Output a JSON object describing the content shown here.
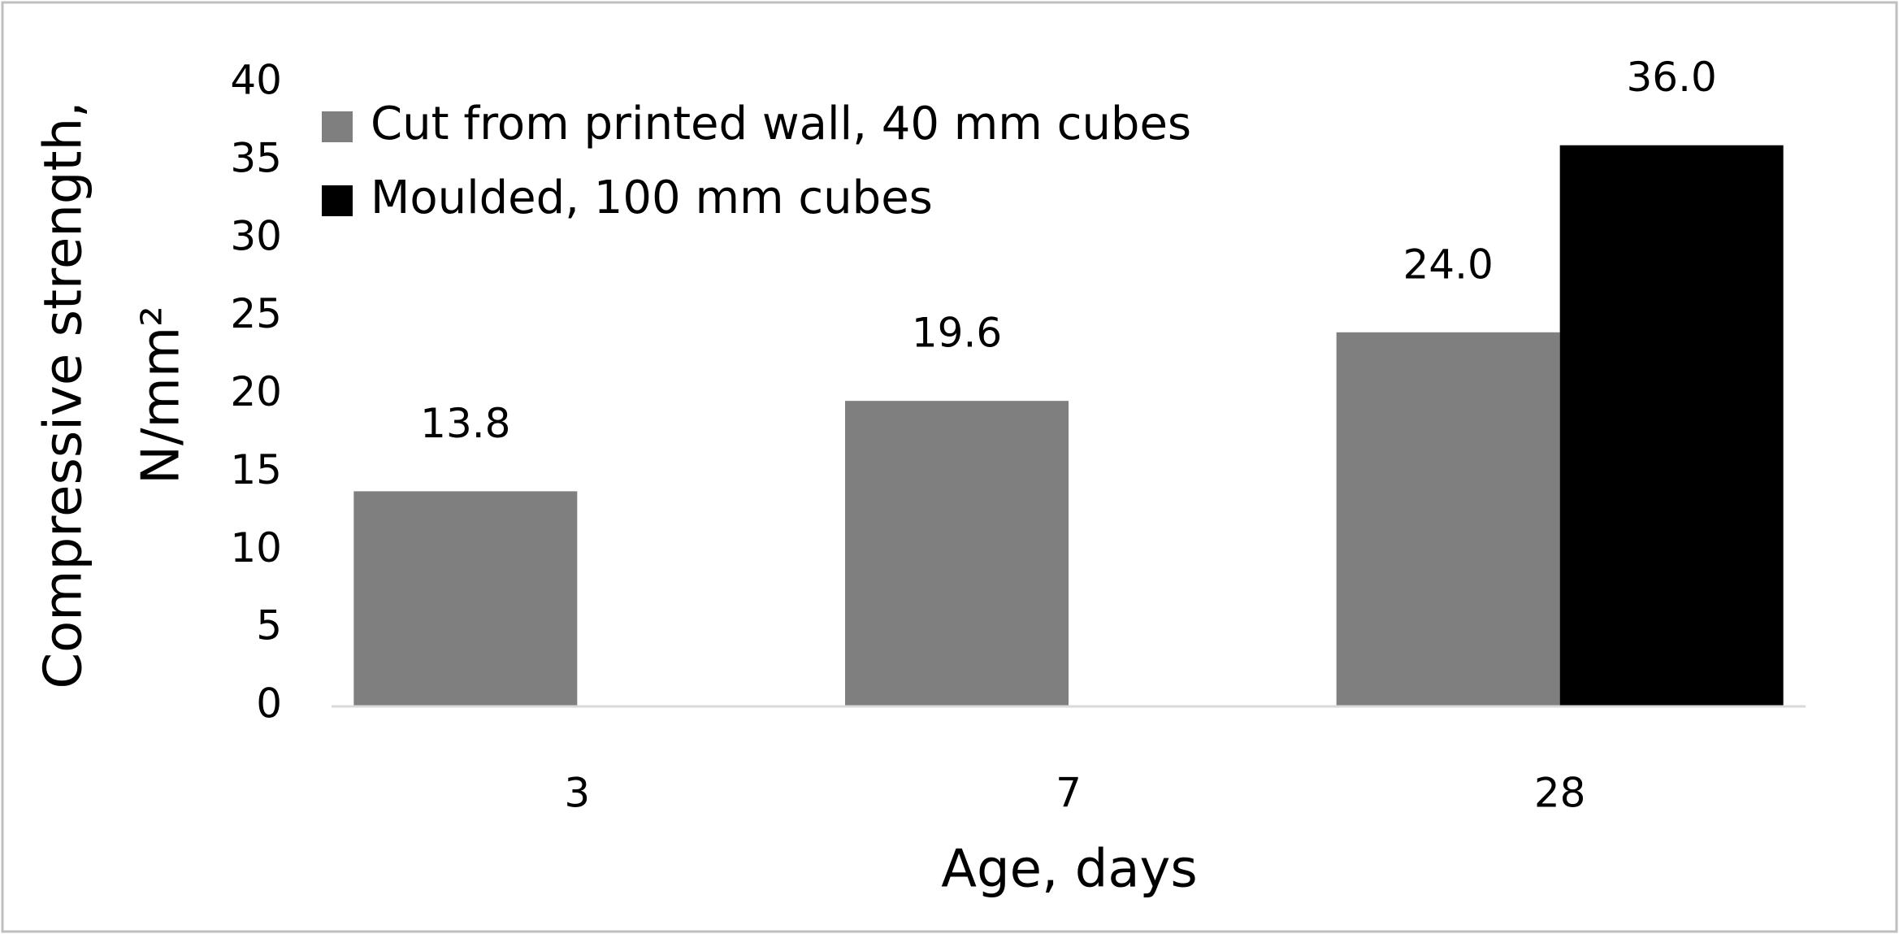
{
  "chart_data": {
    "type": "bar",
    "categories": [
      "3",
      "7",
      "28"
    ],
    "series": [
      {
        "name": "Cut from printed wall, 40 mm cubes",
        "color": "#7f7f7f",
        "values": [
          13.8,
          19.6,
          24.0
        ],
        "value_labels": [
          "13.8",
          "19.6",
          "24.0"
        ]
      },
      {
        "name": "Moulded, 100 mm cubes",
        "color": "#000000",
        "values": [
          null,
          null,
          36.0
        ],
        "value_labels": [
          null,
          null,
          "36.0"
        ]
      }
    ],
    "x_label": "Age, days",
    "y_label": [
      "Compressive strength,",
      "N/mm²"
    ],
    "ylim": [
      0,
      40
    ],
    "yticks": [
      0,
      5,
      10,
      15,
      20,
      25,
      30,
      35,
      40
    ],
    "grid": false,
    "legend": "top-left"
  }
}
